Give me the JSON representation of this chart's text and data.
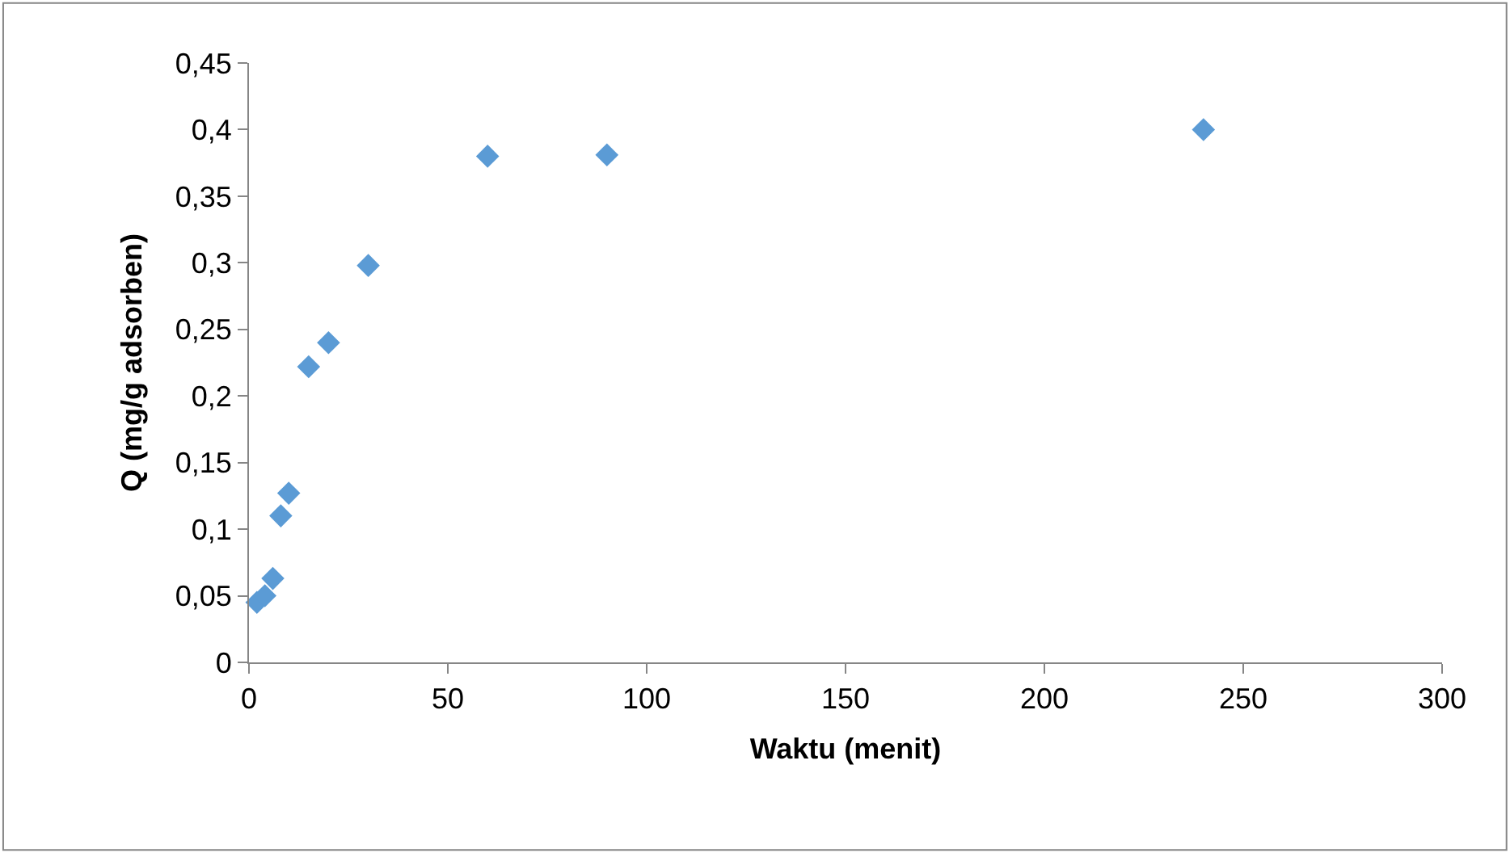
{
  "chart_data": {
    "type": "scatter",
    "xlabel": "Waktu (menit)",
    "ylabel": "Q (mg/g adsorben)",
    "x": [
      2,
      4,
      6,
      8,
      10,
      15,
      20,
      30,
      60,
      90,
      240
    ],
    "series": [
      {
        "color": "#5b9bd5",
        "values": [
          0.045,
          0.05,
          0.063,
          0.11,
          0.127,
          0.222,
          0.24,
          0.298,
          0.38,
          0.381,
          0.4
        ]
      }
    ],
    "marker": "diamond",
    "xlim": [
      0,
      300
    ],
    "xticks": [
      0,
      50,
      100,
      150,
      200,
      250,
      300
    ],
    "ylim": [
      0,
      0.45
    ],
    "yticks": [
      {
        "value": 0,
        "label": "0"
      },
      {
        "value": 0.05,
        "label": "0,05"
      },
      {
        "value": 0.1,
        "label": "0,1"
      },
      {
        "value": 0.15,
        "label": "0,15"
      },
      {
        "value": 0.2,
        "label": "0,2"
      },
      {
        "value": 0.25,
        "label": "0,25"
      },
      {
        "value": 0.3,
        "label": "0,3"
      },
      {
        "value": 0.35,
        "label": "0,35"
      },
      {
        "value": 0.4,
        "label": "0,4"
      },
      {
        "value": 0.45,
        "label": "0,45"
      }
    ]
  }
}
